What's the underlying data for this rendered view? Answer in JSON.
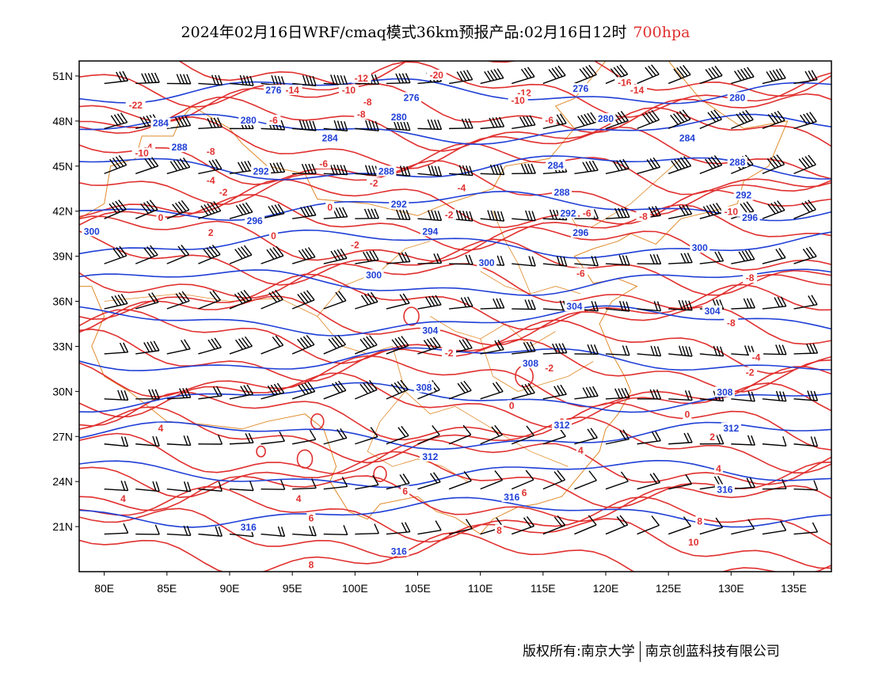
{
  "title": "2024年02月16日WRF/cmaq模式36km预报产品:02月16日12时",
  "level_label": "700hpa",
  "footer": {
    "copyright": "版权所有:南京大学",
    "company": "南京创蓝科技有限公司"
  },
  "colors": {
    "temperature": "#e0302f",
    "height": "#1f3fd6",
    "boundary": "#e08a2a",
    "wind": "#000000"
  },
  "map": {
    "lon_range": [
      78,
      138
    ],
    "lat_range": [
      18,
      52
    ],
    "lon_ticks": [
      "80E",
      "85E",
      "90E",
      "95E",
      "100E",
      "105E",
      "110E",
      "115E",
      "120E",
      "125E",
      "130E",
      "135E"
    ],
    "lat_ticks": [
      "51N",
      "48N",
      "45N",
      "42N",
      "39N",
      "36N",
      "33N",
      "30N",
      "27N",
      "24N",
      "21N"
    ]
  },
  "contour_labels": {
    "temperature": [
      {
        "text": "-20",
        "lon": 106.5,
        "lat": 51.0
      },
      {
        "text": "-16",
        "lon": 121.5,
        "lat": 50.5
      },
      {
        "text": "-14",
        "lon": 95.0,
        "lat": 50.0
      },
      {
        "text": "-14",
        "lon": 122.5,
        "lat": 50.0
      },
      {
        "text": "-12",
        "lon": 100.5,
        "lat": 50.8
      },
      {
        "text": "-10",
        "lon": 99.5,
        "lat": 50.0
      },
      {
        "text": "-12",
        "lon": 113.5,
        "lat": 49.8
      },
      {
        "text": "-10",
        "lon": 113.0,
        "lat": 49.3
      },
      {
        "text": "-8",
        "lon": 101.0,
        "lat": 49.2
      },
      {
        "text": "-8",
        "lon": 100.5,
        "lat": 48.4
      },
      {
        "text": "-6",
        "lon": 93.5,
        "lat": 48.0
      },
      {
        "text": "-6",
        "lon": 115.5,
        "lat": 48.0
      },
      {
        "text": "-22",
        "lon": 82.5,
        "lat": 49.0
      },
      {
        "text": "-4",
        "lon": 83.5,
        "lat": 46.2
      },
      {
        "text": "-10",
        "lon": 83.0,
        "lat": 45.8
      },
      {
        "text": "-8",
        "lon": 88.5,
        "lat": 45.9
      },
      {
        "text": "-6",
        "lon": 97.5,
        "lat": 45.1
      },
      {
        "text": "-4",
        "lon": 88.5,
        "lat": 44.0
      },
      {
        "text": "-2",
        "lon": 89.5,
        "lat": 43.2
      },
      {
        "text": "-2",
        "lon": 101.5,
        "lat": 43.8
      },
      {
        "text": "-4",
        "lon": 108.5,
        "lat": 43.5
      },
      {
        "text": "0",
        "lon": 84.5,
        "lat": 41.5
      },
      {
        "text": "-2",
        "lon": 107.5,
        "lat": 41.7
      },
      {
        "text": "0",
        "lon": 98.0,
        "lat": 42.2
      },
      {
        "text": "2",
        "lon": 88.5,
        "lat": 40.5
      },
      {
        "text": "0",
        "lon": 93.5,
        "lat": 40.3
      },
      {
        "text": "-2",
        "lon": 100.0,
        "lat": 39.7
      },
      {
        "text": "-6",
        "lon": 118.5,
        "lat": 41.8
      },
      {
        "text": "-8",
        "lon": 123.0,
        "lat": 41.6
      },
      {
        "text": "-10",
        "lon": 130.0,
        "lat": 41.9
      },
      {
        "text": "-6",
        "lon": 118.0,
        "lat": 37.8
      },
      {
        "text": "-8",
        "lon": 131.5,
        "lat": 37.5
      },
      {
        "text": "-8",
        "lon": 130.0,
        "lat": 34.5
      },
      {
        "text": "-2",
        "lon": 107.5,
        "lat": 32.5
      },
      {
        "text": "-4",
        "lon": 132.0,
        "lat": 32.2
      },
      {
        "text": "-2",
        "lon": 115.5,
        "lat": 31.5
      },
      {
        "text": "-2",
        "lon": 131.5,
        "lat": 31.2
      },
      {
        "text": "0",
        "lon": 112.5,
        "lat": 29.0
      },
      {
        "text": "0",
        "lon": 126.5,
        "lat": 28.4
      },
      {
        "text": "2",
        "lon": 116.5,
        "lat": 27.9
      },
      {
        "text": "2",
        "lon": 128.5,
        "lat": 26.9
      },
      {
        "text": "4",
        "lon": 84.5,
        "lat": 27.5
      },
      {
        "text": "4",
        "lon": 118.0,
        "lat": 26.0
      },
      {
        "text": "4",
        "lon": 105.5,
        "lat": 25.6
      },
      {
        "text": "4",
        "lon": 129.0,
        "lat": 24.8
      },
      {
        "text": "6",
        "lon": 113.5,
        "lat": 23.2
      },
      {
        "text": "4",
        "lon": 95.5,
        "lat": 22.8
      },
      {
        "text": "4",
        "lon": 81.5,
        "lat": 22.8
      },
      {
        "text": "6",
        "lon": 104.0,
        "lat": 23.3
      },
      {
        "text": "6",
        "lon": 96.5,
        "lat": 21.5
      },
      {
        "text": "8",
        "lon": 111.5,
        "lat": 20.7
      },
      {
        "text": "8",
        "lon": 127.5,
        "lat": 21.3
      },
      {
        "text": "10",
        "lon": 127.0,
        "lat": 19.9
      },
      {
        "text": "8",
        "lon": 96.5,
        "lat": 18.4
      }
    ],
    "height": [
      {
        "text": "276",
        "lon": 93.5,
        "lat": 50.0
      },
      {
        "text": "276",
        "lon": 104.5,
        "lat": 49.5
      },
      {
        "text": "276",
        "lon": 118.0,
        "lat": 50.1
      },
      {
        "text": "280",
        "lon": 130.5,
        "lat": 49.5
      },
      {
        "text": "284",
        "lon": 84.5,
        "lat": 47.8
      },
      {
        "text": "280",
        "lon": 91.5,
        "lat": 48.0
      },
      {
        "text": "280",
        "lon": 103.5,
        "lat": 48.2
      },
      {
        "text": "280",
        "lon": 120.0,
        "lat": 48.1
      },
      {
        "text": "284",
        "lon": 98.0,
        "lat": 46.8
      },
      {
        "text": "284",
        "lon": 126.5,
        "lat": 46.8
      },
      {
        "text": "288",
        "lon": 86.0,
        "lat": 46.2
      },
      {
        "text": "292",
        "lon": 92.5,
        "lat": 44.6
      },
      {
        "text": "288",
        "lon": 102.5,
        "lat": 44.6
      },
      {
        "text": "284",
        "lon": 116.0,
        "lat": 45.0
      },
      {
        "text": "288",
        "lon": 130.5,
        "lat": 45.2
      },
      {
        "text": "288",
        "lon": 116.5,
        "lat": 43.2
      },
      {
        "text": "292",
        "lon": 131.0,
        "lat": 43.0
      },
      {
        "text": "292",
        "lon": 103.5,
        "lat": 42.4
      },
      {
        "text": "292",
        "lon": 117.0,
        "lat": 41.8
      },
      {
        "text": "296",
        "lon": 92.0,
        "lat": 41.3
      },
      {
        "text": "296",
        "lon": 131.5,
        "lat": 41.5
      },
      {
        "text": "300",
        "lon": 79.0,
        "lat": 40.6
      },
      {
        "text": "294",
        "lon": 106.0,
        "lat": 40.6
      },
      {
        "text": "296",
        "lon": 118.0,
        "lat": 40.5
      },
      {
        "text": "300",
        "lon": 127.5,
        "lat": 39.5
      },
      {
        "text": "300",
        "lon": 110.5,
        "lat": 38.5
      },
      {
        "text": "300",
        "lon": 101.5,
        "lat": 37.7
      },
      {
        "text": "304",
        "lon": 117.5,
        "lat": 35.6
      },
      {
        "text": "304",
        "lon": 128.5,
        "lat": 35.3
      },
      {
        "text": "304",
        "lon": 106.0,
        "lat": 34.0
      },
      {
        "text": "308",
        "lon": 114.0,
        "lat": 31.8
      },
      {
        "text": "308",
        "lon": 105.5,
        "lat": 30.2
      },
      {
        "text": "308",
        "lon": 129.5,
        "lat": 29.9
      },
      {
        "text": "312",
        "lon": 116.5,
        "lat": 27.7
      },
      {
        "text": "312",
        "lon": 130.0,
        "lat": 27.5
      },
      {
        "text": "312",
        "lon": 106.0,
        "lat": 25.6
      },
      {
        "text": "316",
        "lon": 112.5,
        "lat": 22.9
      },
      {
        "text": "316",
        "lon": 129.5,
        "lat": 23.4
      },
      {
        "text": "316",
        "lon": 91.5,
        "lat": 20.9
      },
      {
        "text": "316",
        "lon": 103.5,
        "lat": 19.3
      }
    ]
  }
}
